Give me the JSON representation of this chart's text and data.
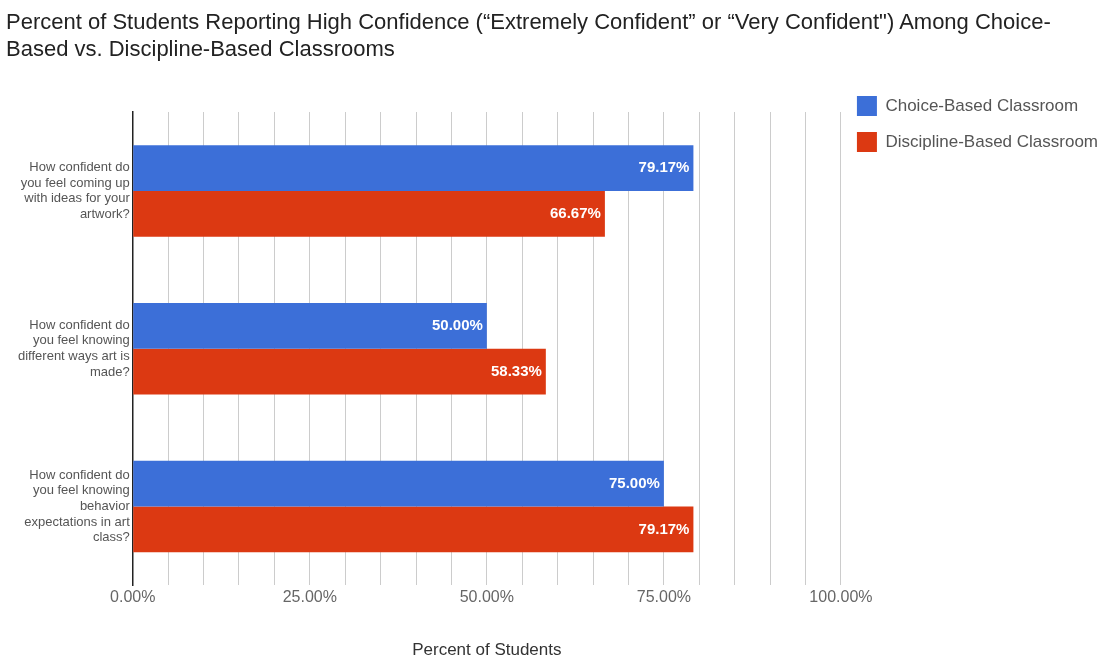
{
  "chart_data": {
    "type": "bar",
    "orientation": "horizontal",
    "title": "Percent of Students Reporting High Confidence (“Extremely Confident” or “Very Confident\") Among Choice-Based vs. Discipline-Based Classrooms",
    "xlabel": "Percent of Students",
    "categories": [
      "How confident do you feel coming up with ideas for your artwork?",
      "How confident do you feel knowing different ways art is made?",
      "How confident do you feel knowing behavior expectations in art class?"
    ],
    "series": [
      {
        "name": "Choice-Based Classroom",
        "color": "#3c6fd8",
        "values": [
          79.17,
          50.0,
          75.0
        ],
        "value_labels": [
          "79.17%",
          "50.00%",
          "75.00%"
        ]
      },
      {
        "name": "Discipline-Based Classroom",
        "color": "#dc3912",
        "values": [
          66.67,
          58.33,
          79.17
        ],
        "value_labels": [
          "66.67%",
          "58.33%",
          "79.17%"
        ]
      }
    ],
    "xlim": [
      0,
      100
    ],
    "xticks": [
      {
        "value": 0,
        "label": "0.00%"
      },
      {
        "value": 5,
        "label": null
      },
      {
        "value": 10,
        "label": null
      },
      {
        "value": 15,
        "label": null
      },
      {
        "value": 20,
        "label": null
      },
      {
        "value": 25,
        "label": "25.00%"
      },
      {
        "value": 30,
        "label": null
      },
      {
        "value": 35,
        "label": null
      },
      {
        "value": 40,
        "label": null
      },
      {
        "value": 45,
        "label": null
      },
      {
        "value": 50,
        "label": "50.00%"
      },
      {
        "value": 55,
        "label": null
      },
      {
        "value": 60,
        "label": null
      },
      {
        "value": 65,
        "label": null
      },
      {
        "value": 70,
        "label": null
      },
      {
        "value": 75,
        "label": "75.00%"
      },
      {
        "value": 80,
        "label": null
      },
      {
        "value": 85,
        "label": null
      },
      {
        "value": 90,
        "label": null
      },
      {
        "value": 95,
        "label": null
      },
      {
        "value": 100,
        "label": "100.00%"
      }
    ],
    "grid": "x",
    "legend": "top right"
  }
}
